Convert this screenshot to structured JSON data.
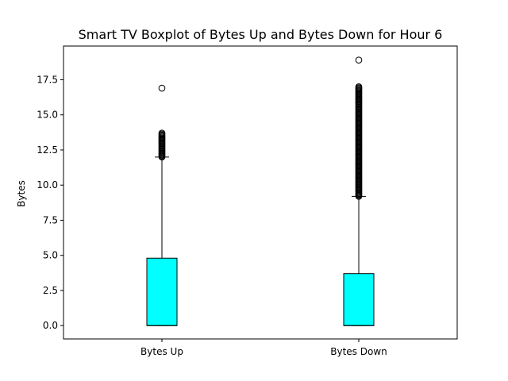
{
  "chart_data": {
    "type": "boxplot",
    "title": "Smart TV Boxplot of Bytes Up and Bytes Down for Hour 6",
    "xlabel": "",
    "ylabel": "Bytes",
    "ylim": [
      -0.95,
      19.9
    ],
    "yticks": [
      0.0,
      2.5,
      5.0,
      7.5,
      10.0,
      12.5,
      15.0,
      17.5
    ],
    "yticklabels": [
      "0.0",
      "2.5",
      "5.0",
      "7.5",
      "10.0",
      "12.5",
      "15.0",
      "17.5"
    ],
    "grid": false,
    "box_color": "#00ffff",
    "categories": [
      "Bytes Up",
      "Bytes Down"
    ],
    "boxes": [
      {
        "label": "Bytes Up",
        "whisker_low": 0.0,
        "q1": 0.0,
        "median": 0.0,
        "q3": 4.8,
        "whisker_high": 12.0,
        "outlier_range": [
          12.0,
          13.7
        ],
        "outliers": [
          16.9
        ]
      },
      {
        "label": "Bytes Down",
        "whisker_low": 0.0,
        "q1": 0.0,
        "median": 0.0,
        "q3": 3.7,
        "whisker_high": 9.2,
        "outlier_range": [
          9.2,
          17.0
        ],
        "outliers": [
          18.9
        ]
      }
    ]
  }
}
